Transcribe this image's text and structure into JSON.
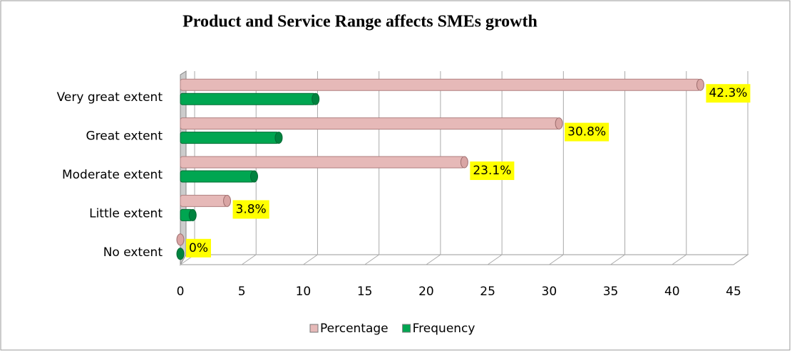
{
  "chart_data": {
    "type": "bar",
    "orientation": "horizontal",
    "title": "Product and Service Range affects SMEs growth",
    "categories": [
      "Very great extent",
      "Great extent",
      "Moderate extent",
      "Little extent",
      "No extent"
    ],
    "series": [
      {
        "name": "Percentage",
        "color": "#e6b9b8",
        "values": [
          42.3,
          30.8,
          23.1,
          3.8,
          0
        ],
        "value_labels": [
          "42.3%",
          "30.8%",
          "23.1%",
          "3.8%",
          "0%"
        ]
      },
      {
        "name": "Frequency",
        "color": "#00a651",
        "values": [
          11,
          8,
          6,
          1,
          0
        ]
      }
    ],
    "xlim": [
      0,
      45
    ],
    "xticks": [
      0,
      5,
      10,
      15,
      20,
      25,
      30,
      35,
      40,
      45
    ],
    "grid": true,
    "legend": "bottom"
  }
}
